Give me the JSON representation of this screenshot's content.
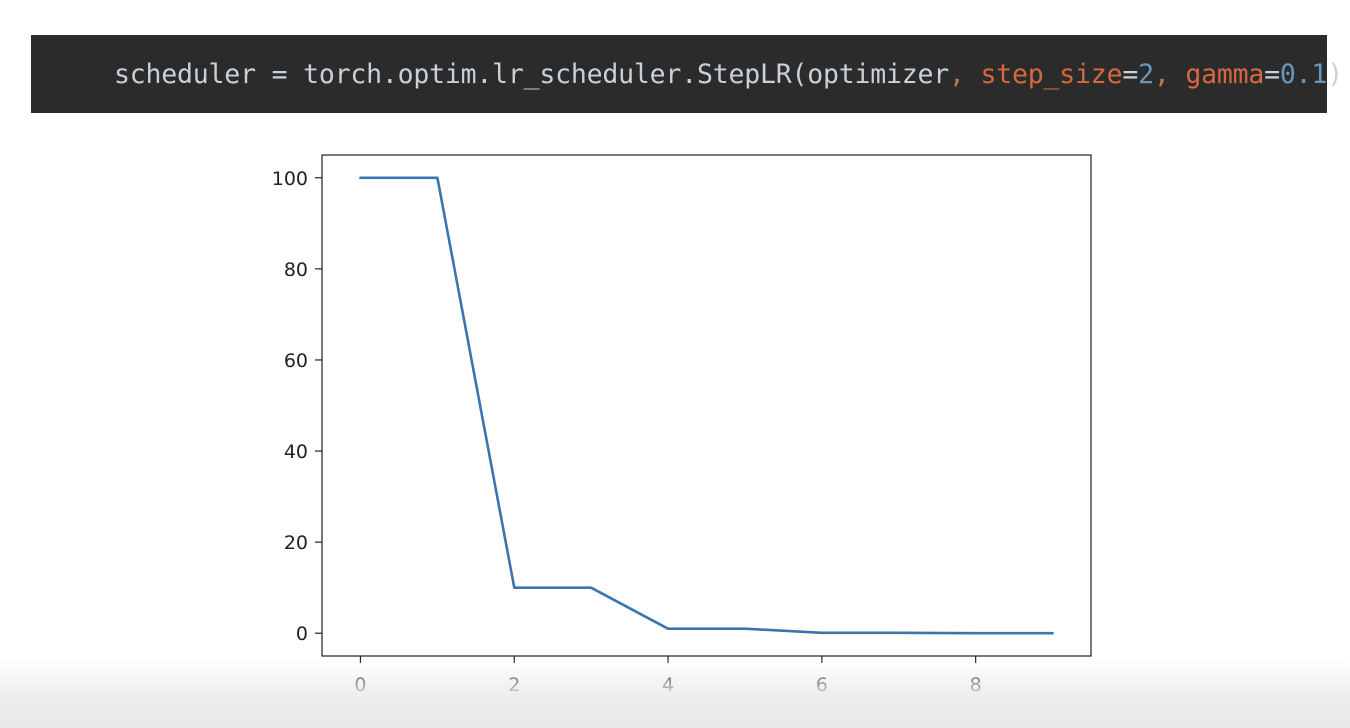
{
  "code": {
    "tokens": [
      {
        "text": "scheduler = torch.optim.lr_scheduler.StepLR(optimizer",
        "color": "#c8d0da"
      },
      {
        "text": ", ",
        "color": "#cc7832"
      },
      {
        "text": "step_size",
        "color": "#d5683f"
      },
      {
        "text": "=",
        "color": "#c8d0da"
      },
      {
        "text": "2",
        "color": "#6897bb"
      },
      {
        "text": ", ",
        "color": "#cc7832"
      },
      {
        "text": "gamma",
        "color": "#d5683f"
      },
      {
        "text": "=",
        "color": "#c8d0da"
      },
      {
        "text": "0.1",
        "color": "#6897bb"
      },
      {
        "text": ")",
        "color": "#c8d0da"
      }
    ]
  },
  "chart_data": {
    "type": "line",
    "x": [
      0,
      1,
      2,
      3,
      4,
      5,
      6,
      7,
      8,
      9
    ],
    "series": [
      {
        "values": [
          100,
          100,
          10,
          10,
          1,
          1,
          0.1,
          0.1,
          0.01,
          0.01
        ],
        "color": "#3a75af"
      }
    ],
    "xlim": [
      -0.5,
      9.5
    ],
    "ylim": [
      -5,
      105
    ],
    "xticks": [
      0,
      2,
      4,
      6,
      8
    ],
    "yticks": [
      0,
      20,
      40,
      60,
      80,
      100
    ],
    "grid": false,
    "title": "",
    "xlabel": "",
    "ylabel": ""
  }
}
